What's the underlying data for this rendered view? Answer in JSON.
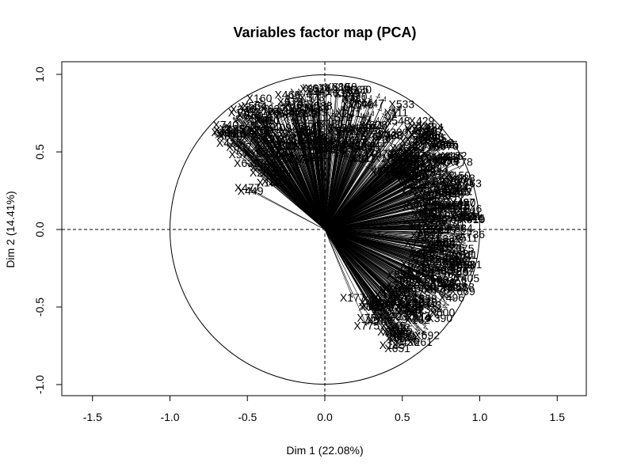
{
  "chart_data": {
    "type": "scatter",
    "subtype": "pca-variables-factor-map",
    "title": "Variables factor map (PCA)",
    "xlabel": "Dim 1 (22.08%)",
    "ylabel": "Dim 2 (14.41%)",
    "xlim": [
      -1.6,
      1.6
    ],
    "ylim": [
      -1.0,
      1.0
    ],
    "xticks": [
      -1.5,
      -1.0,
      -0.5,
      0.0,
      0.5,
      1.0,
      1.5
    ],
    "yticks": [
      -1.0,
      -0.5,
      0.0,
      0.5,
      1.0
    ],
    "grid": false,
    "unit_circle": true,
    "reference_lines": [
      "x=0",
      "y=0"
    ],
    "legend": "none",
    "colors": {
      "ink": "#000000",
      "background": "#ffffff"
    },
    "labeled_variables": [
      {
        "name": "X477",
        "x": -0.5,
        "y": 0.27
      },
      {
        "name": "X449",
        "x": -0.48,
        "y": 0.25
      },
      {
        "name": "X775",
        "x": 0.27,
        "y": -0.62
      },
      {
        "name": "X745",
        "x": 0.44,
        "y": -0.62
      },
      {
        "name": "X758",
        "x": 0.29,
        "y": -0.57
      },
      {
        "name": "X172",
        "x": 0.36,
        "y": -0.5
      },
      {
        "name": "X177",
        "x": 0.18,
        "y": -0.44
      },
      {
        "name": "X127",
        "x": 0.32,
        "y": -0.45
      }
    ]
  }
}
